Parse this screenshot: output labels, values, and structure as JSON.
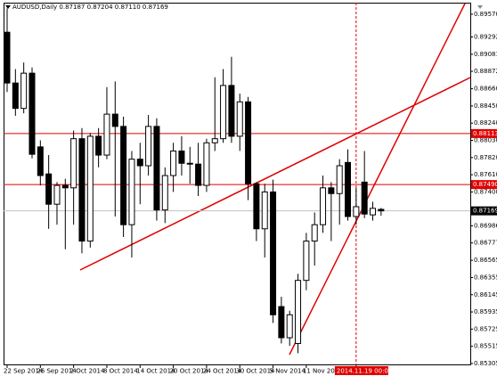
{
  "chart_data": {
    "type": "candlestick",
    "title": "AUDUSD,Daily 0.87187 0.87204 0.87110 0.87169",
    "categories": [
      "22 Sep 2014",
      null,
      null,
      null,
      "26 Sep 2014",
      null,
      null,
      null,
      "2 Oct 2014",
      null,
      null,
      null,
      "8 Oct 2014",
      null,
      null,
      null,
      "14 Oct 2014",
      null,
      null,
      null,
      "20 Oct 2014",
      null,
      null,
      null,
      "24 Oct 2014",
      null,
      null,
      null,
      "30 Oct 2014",
      null,
      null,
      null,
      "5 Nov 2014",
      null,
      null,
      null,
      "11 Nov 2014",
      null,
      null,
      null,
      null,
      null,
      "2014.11.19 00:00",
      null,
      null,
      null
    ],
    "open": [
      0.8935,
      0.8873,
      0.8842,
      0.8885,
      0.8795,
      0.8762,
      0.8725,
      0.8748,
      0.8745,
      0.8805,
      0.868,
      0.8808,
      0.8785,
      0.8835,
      0.882,
      0.87,
      0.878,
      0.8772,
      0.882,
      0.8718,
      0.876,
      0.879,
      0.8775,
      0.8774,
      0.8748,
      0.88,
      0.8805,
      0.887,
      0.8808,
      0.885,
      0.875,
      0.8695,
      0.874,
      0.86,
      0.8562,
      0.8555,
      0.8632,
      0.868,
      0.87,
      0.8745,
      0.8738,
      0.8776,
      0.871,
      0.8752,
      0.8712,
      0.87187
    ],
    "high": [
      0.8964,
      0.889,
      0.8898,
      0.8892,
      0.8803,
      0.8785,
      0.8752,
      0.8756,
      0.8815,
      0.8818,
      0.8812,
      0.8818,
      0.8868,
      0.8875,
      0.8832,
      0.879,
      0.88,
      0.8834,
      0.883,
      0.877,
      0.88,
      0.8808,
      0.8795,
      0.88,
      0.8805,
      0.888,
      0.889,
      0.8905,
      0.886,
      0.8856,
      0.8752,
      0.875,
      0.8755,
      0.8612,
      0.8595,
      0.864,
      0.869,
      0.8715,
      0.876,
      0.8752,
      0.878,
      0.8792,
      0.8745,
      0.879,
      0.8728,
      0.87204
    ],
    "low": [
      0.8862,
      0.8833,
      0.8836,
      0.8781,
      0.8748,
      0.8695,
      0.87,
      0.867,
      0.87,
      0.8665,
      0.8672,
      0.877,
      0.878,
      0.871,
      0.8685,
      0.866,
      0.8725,
      0.876,
      0.8705,
      0.8702,
      0.874,
      0.876,
      0.875,
      0.8735,
      0.874,
      0.879,
      0.88,
      0.88,
      0.879,
      0.873,
      0.868,
      0.866,
      0.858,
      0.8555,
      0.8552,
      0.8543,
      0.862,
      0.865,
      0.869,
      0.868,
      0.87,
      0.8705,
      0.87,
      0.8708,
      0.8705,
      0.8711
    ],
    "close": [
      0.8873,
      0.8842,
      0.8885,
      0.8786,
      0.876,
      0.8725,
      0.8748,
      0.8745,
      0.8805,
      0.868,
      0.8808,
      0.8785,
      0.8835,
      0.882,
      0.87,
      0.878,
      0.8772,
      0.882,
      0.8718,
      0.876,
      0.879,
      0.8775,
      0.8774,
      0.8748,
      0.88,
      0.8805,
      0.887,
      0.8808,
      0.885,
      0.875,
      0.8695,
      0.874,
      0.859,
      0.8562,
      0.859,
      0.8632,
      0.868,
      0.87,
      0.8745,
      0.8738,
      0.8772,
      0.871,
      0.8722,
      0.8713,
      0.872,
      0.87169
    ],
    "bull_color": "#ffffff",
    "bear_color": "#000000",
    "outline_color": "#000000",
    "ylim": [
      0.85283,
      0.89711
    ],
    "yticks": [
      {
        "value": 0.8957,
        "label": "0.89570"
      },
      0.89292,
      0.89081,
      0.88872,
      {
        "value": 0.8866,
        "label": "0.88660"
      },
      {
        "value": 0.8845,
        "label": "0.88450"
      },
      {
        "value": 0.8824,
        "label": "0.88240"
      },
      {
        "value": 0.8803,
        "label": "0.88030"
      },
      {
        "value": 0.8782,
        "label": "0.87820"
      },
      {
        "value": 0.8761,
        "label": "0.87610"
      },
      {
        "value": 0.874,
        "label": "0.87400"
      },
      0.86986,
      0.86777,
      0.86565,
      0.86355,
      0.86145,
      0.85935,
      0.85725,
      0.85515,
      0.85305
    ],
    "levels": [
      {
        "value": 0.88113,
        "color": "#e00000"
      },
      {
        "value": 0.8749,
        "label": "0.87490",
        "color": "#e00000"
      },
      {
        "value": 0.87169,
        "color": "#000000",
        "line_color": "#c0c0c0"
      }
    ],
    "crosshair": {
      "color": "#e00000"
    },
    "grid": false
  }
}
